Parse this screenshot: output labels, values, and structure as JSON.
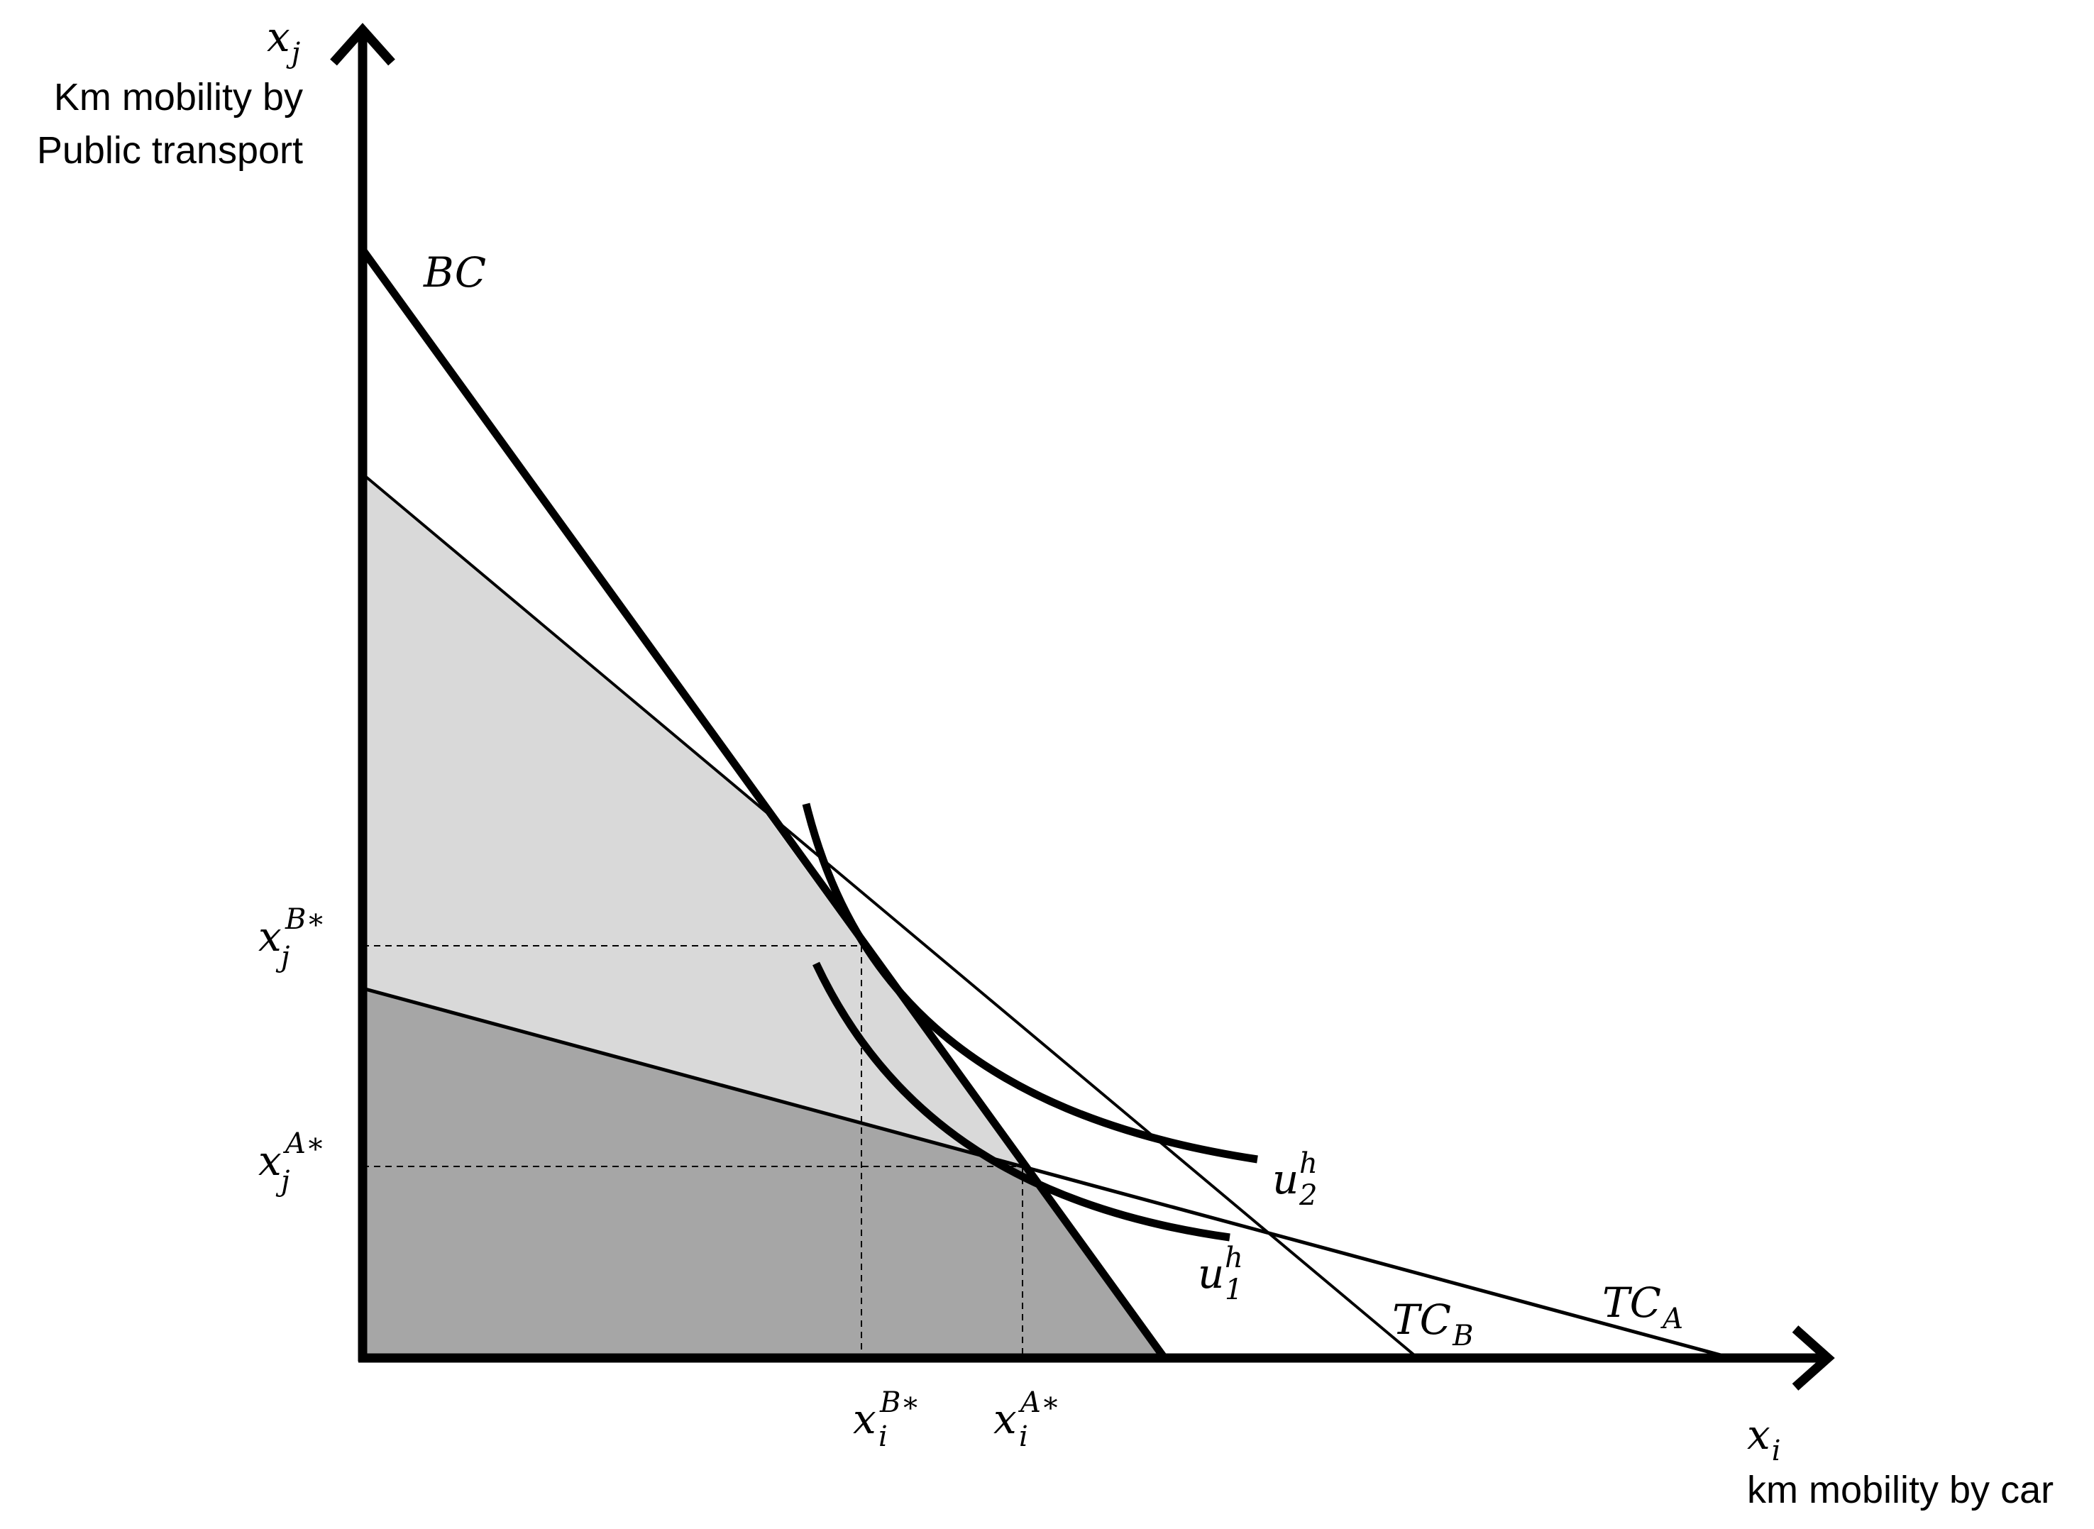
{
  "axes": {
    "y_symbol": "x",
    "y_symbol_sub": "j",
    "y_title_line1": "Km mobility by",
    "y_title_line2": "Public transport",
    "x_symbol": "x",
    "x_symbol_sub": "i",
    "x_title": "km mobility by car"
  },
  "curve_labels": {
    "bc": "BC",
    "tc_a_main": "TC",
    "tc_a_sub": "A",
    "tc_b_main": "TC",
    "tc_b_sub": "B",
    "u1_main": "u",
    "u1_sub": "1",
    "u1_sup": "h",
    "u2_main": "u",
    "u2_sub": "2",
    "u2_sup": "h"
  },
  "tick_labels": {
    "xj_b_main": "x",
    "xj_b_sub": "j",
    "xj_b_sup": "B∗",
    "xj_a_main": "x",
    "xj_a_sub": "j",
    "xj_a_sup": "A∗",
    "xi_b_main": "x",
    "xi_b_sub": "i",
    "xi_b_sup": "B∗",
    "xi_a_main": "x",
    "xi_a_sub": "i",
    "xi_a_sup": "A∗"
  },
  "colors": {
    "light_region": "#d9d9d9",
    "dark_region": "#a6a6a6",
    "line": "#000000"
  }
}
